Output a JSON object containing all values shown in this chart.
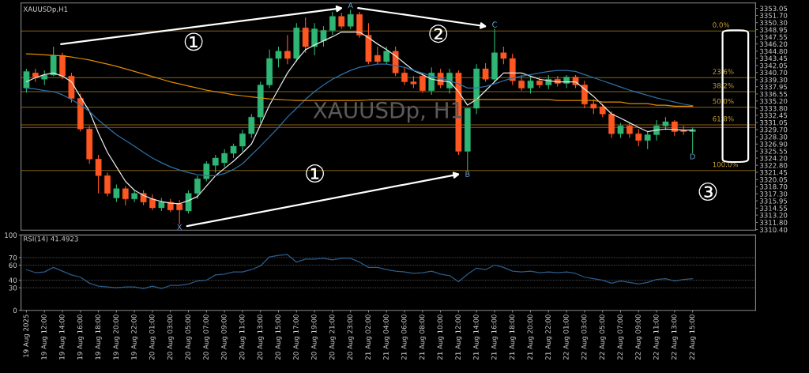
{
  "chart_data": [
    {
      "type": "candlestick",
      "title": "XAUUSDp,H1",
      "categories": [
        null,
        null,
        null,
        null,
        null,
        null,
        null,
        null,
        null,
        null,
        null,
        null,
        null,
        null,
        null,
        null,
        null,
        null,
        null,
        null,
        null,
        null,
        null,
        null,
        null,
        null,
        null,
        null,
        null,
        null,
        null,
        null,
        null,
        null,
        null,
        null,
        null,
        null,
        null,
        null,
        null,
        null,
        null,
        null,
        null,
        null,
        null,
        null,
        null,
        null,
        null,
        null,
        null,
        null,
        null,
        null,
        null,
        null,
        null,
        null,
        null,
        null,
        null,
        null,
        null,
        null,
        null,
        null,
        null,
        null,
        null,
        null,
        null,
        null,
        null
      ],
      "ohlc": [
        [
          3337.7,
          3341.4,
          3336.8,
          3340.9
        ],
        [
          3340.6,
          3341.4,
          3338.9,
          3339.8
        ],
        [
          3339.4,
          3341.1,
          3338.3,
          3340.2
        ],
        [
          3340.2,
          3345.7,
          3340.0,
          3344.0
        ],
        [
          3344.0,
          3344.5,
          3339.4,
          3340.0
        ],
        [
          3340.0,
          3340.6,
          3334.9,
          3335.7
        ],
        [
          3335.7,
          3336.6,
          3329.3,
          3329.8
        ],
        [
          3329.8,
          3330.4,
          3323.1,
          3324.0
        ],
        [
          3324.0,
          3324.8,
          3317.4,
          3320.8
        ],
        [
          3320.8,
          3321.4,
          3316.8,
          3317.4
        ],
        [
          3316.5,
          3319.1,
          3315.7,
          3318.3
        ],
        [
          3318.3,
          3318.8,
          3315.1,
          3316.3
        ],
        [
          3316.3,
          3318.0,
          3315.7,
          3317.4
        ],
        [
          3317.4,
          3318.0,
          3315.1,
          3315.7
        ],
        [
          3316.3,
          3317.2,
          3314.2,
          3314.6
        ],
        [
          3314.6,
          3316.5,
          3314.0,
          3315.7
        ],
        [
          3315.7,
          3316.3,
          3313.8,
          3314.2
        ],
        [
          3315.4,
          3316.1,
          3311.5,
          3314.2
        ],
        [
          3314.0,
          3318.0,
          3313.5,
          3317.4
        ],
        [
          3317.4,
          3320.8,
          3316.3,
          3320.2
        ],
        [
          3320.2,
          3323.6,
          3319.7,
          3323.1
        ],
        [
          3322.8,
          3324.8,
          3321.4,
          3324.2
        ],
        [
          3323.3,
          3325.9,
          3322.5,
          3325.1
        ],
        [
          3325.1,
          3327.0,
          3324.2,
          3326.5
        ],
        [
          3326.5,
          3329.6,
          3325.5,
          3328.9
        ],
        [
          3328.9,
          3332.7,
          3328.1,
          3332.1
        ],
        [
          3332.1,
          3338.9,
          3331.0,
          3338.3
        ],
        [
          3338.3,
          3345.1,
          3337.7,
          3343.4
        ],
        [
          3343.4,
          3345.7,
          3341.7,
          3344.8
        ],
        [
          3344.8,
          3347.9,
          3342.3,
          3343.4
        ],
        [
          3343.4,
          3350.2,
          3342.8,
          3349.3
        ],
        [
          3349.3,
          3351.3,
          3344.5,
          3345.7
        ],
        [
          3345.7,
          3350.2,
          3344.0,
          3349.1
        ],
        [
          3346.8,
          3349.6,
          3345.7,
          3348.8
        ],
        [
          3348.8,
          3352.4,
          3347.9,
          3351.5
        ],
        [
          3351.5,
          3352.2,
          3349.1,
          3349.6
        ],
        [
          3349.6,
          3352.8,
          3349.1,
          3351.9
        ],
        [
          3351.9,
          3352.4,
          3347.4,
          3347.9
        ],
        [
          3347.9,
          3350.2,
          3342.3,
          3342.8
        ],
        [
          3344.0,
          3345.7,
          3342.3,
          3342.8
        ],
        [
          3342.8,
          3345.7,
          3342.3,
          3344.8
        ],
        [
          3344.8,
          3345.7,
          3340.0,
          3340.6
        ],
        [
          3340.6,
          3341.7,
          3338.3,
          3338.9
        ],
        [
          3338.9,
          3340.0,
          3337.7,
          3338.5
        ],
        [
          3340.0,
          3340.6,
          3336.8,
          3337.2
        ],
        [
          3337.2,
          3341.7,
          3336.4,
          3340.6
        ],
        [
          3340.6,
          3341.4,
          3337.7,
          3338.3
        ],
        [
          3337.7,
          3341.4,
          3336.6,
          3340.6
        ],
        [
          3340.6,
          3341.1,
          3324.8,
          3325.5
        ],
        [
          3325.5,
          3333.8,
          3321.7,
          3333.8
        ],
        [
          3333.8,
          3342.3,
          3332.7,
          3341.4
        ],
        [
          3341.4,
          3342.5,
          3338.9,
          3339.4
        ],
        [
          3339.4,
          3349.1,
          3338.9,
          3344.5
        ],
        [
          3344.5,
          3345.7,
          3342.3,
          3343.4
        ],
        [
          3343.4,
          3344.3,
          3338.3,
          3339.1
        ],
        [
          3339.1,
          3340.2,
          3337.2,
          3337.7
        ],
        [
          3337.7,
          3340.0,
          3336.6,
          3339.1
        ],
        [
          3339.1,
          3339.8,
          3337.7,
          3338.3
        ],
        [
          3338.3,
          3340.2,
          3337.5,
          3339.4
        ],
        [
          3339.4,
          3340.0,
          3338.0,
          3338.6
        ],
        [
          3338.6,
          3340.2,
          3337.7,
          3339.8
        ],
        [
          3339.8,
          3340.2,
          3337.7,
          3338.3
        ],
        [
          3338.3,
          3339.1,
          3333.8,
          3334.6
        ],
        [
          3334.6,
          3335.5,
          3332.7,
          3333.8
        ],
        [
          3334.1,
          3334.6,
          3332.1,
          3332.7
        ],
        [
          3332.7,
          3333.2,
          3328.1,
          3328.9
        ],
        [
          3328.9,
          3331.0,
          3328.1,
          3330.4
        ],
        [
          3330.4,
          3331.0,
          3328.1,
          3328.9
        ],
        [
          3328.9,
          3329.8,
          3326.5,
          3327.6
        ],
        [
          3327.6,
          3329.3,
          3325.9,
          3328.7
        ],
        [
          3328.7,
          3331.5,
          3327.6,
          3330.4
        ],
        [
          3330.4,
          3332.1,
          3329.6,
          3331.2
        ],
        [
          3331.2,
          3331.5,
          3328.5,
          3329.3
        ],
        [
          3329.6,
          3330.4,
          3328.7,
          3329.3
        ],
        [
          3329.3,
          3330.1,
          3325.1,
          3329.7
        ]
      ],
      "colors": [
        "#2fb574",
        "#ff5722",
        "#2fb574",
        "#2fb574",
        "#ff5722",
        "#ff5722",
        "#ff5722",
        "#ff5722",
        "#ff5722",
        "#ff5722",
        "#2fb574",
        "#ff5722",
        "#2fb574",
        "#ff5722",
        "#ff5722",
        "#2fb574",
        "#ff5722",
        "#ff5722",
        "#2fb574",
        "#2fb574",
        "#2fb574",
        "#2fb574",
        "#2fb574",
        "#2fb574",
        "#2fb574",
        "#2fb574",
        "#2fb574",
        "#2fb574",
        "#2fb574",
        "#ff5722",
        "#2fb574",
        "#ff5722",
        "#2fb574",
        "#2fb574",
        "#2fb574",
        "#ff5722",
        "#2fb574",
        "#ff5722",
        "#ff5722",
        "#ff5722",
        "#2fb574",
        "#ff5722",
        "#ff5722",
        "#ff5722",
        "#ff5722",
        "#2fb574",
        "#ff5722",
        "#2fb574",
        "#ff5722",
        "#2fb574",
        "#2fb574",
        "#ff5722",
        "#2fb574",
        "#ff5722",
        "#ff5722",
        "#ff5722",
        "#2fb574",
        "#ff5722",
        "#2fb574",
        "#ff5722",
        "#2fb574",
        "#ff5722",
        "#ff5722",
        "#ff5722",
        "#ff5722",
        "#ff5722",
        "#2fb574",
        "#ff5722",
        "#ff5722",
        "#2fb574",
        "#2fb574",
        "#2fb574",
        "#ff5722",
        "#ff5722",
        "#2fb574"
      ],
      "series": [
        {
          "type": "line",
          "color": "#e8e8e8",
          "values": [
            3338.9,
            3339.7,
            3340.3,
            3340.6,
            3340.0,
            3338.9,
            3336.0,
            3333.2,
            3329.0,
            3325.3,
            3322.5,
            3319.7,
            3318.0,
            3317.0,
            3316.3,
            3315.8,
            3315.5,
            3315.4,
            3316.0,
            3316.8,
            3318.8,
            3320.8,
            3322.2,
            3323.6,
            3325.2,
            3326.9,
            3330.6,
            3334.4,
            3337.5,
            3340.6,
            3343.0,
            3345.1,
            3346.0,
            3346.8,
            3347.6,
            3348.5,
            3348.5,
            3348.5,
            3347.4,
            3346.2,
            3345.1,
            3343.9,
            3342.5,
            3341.1,
            3340.3,
            3339.4,
            3339.1,
            3338.9,
            3337.0,
            3334.4,
            3335.5,
            3337.2,
            3338.9,
            3340.6,
            3340.6,
            3340.6,
            3340.0,
            3339.4,
            3339.1,
            3338.9,
            3338.9,
            3338.9,
            3337.5,
            3336.1,
            3334.4,
            3332.7,
            3331.9,
            3331.0,
            3330.1,
            3329.3,
            3329.6,
            3329.8,
            3329.7,
            3329.6,
            3329.6
          ]
        },
        {
          "type": "line",
          "color": "#2f6fa8",
          "values": [
            3337.7,
            3337.5,
            3337.2,
            3337.0,
            3336.4,
            3335.5,
            3334.4,
            3333.2,
            3331.5,
            3330.1,
            3328.7,
            3327.6,
            3326.5,
            3325.3,
            3324.2,
            3323.3,
            3322.5,
            3321.9,
            3321.4,
            3321.0,
            3320.8,
            3320.8,
            3321.2,
            3322.0,
            3323.1,
            3324.8,
            3326.5,
            3328.3,
            3330.1,
            3332.1,
            3333.8,
            3335.5,
            3337.0,
            3338.3,
            3339.4,
            3340.3,
            3341.1,
            3341.7,
            3342.0,
            3342.3,
            3342.3,
            3342.0,
            3341.7,
            3341.1,
            3340.6,
            3340.0,
            3339.6,
            3339.1,
            3338.5,
            3337.7,
            3337.7,
            3338.0,
            3338.5,
            3339.1,
            3339.6,
            3340.0,
            3340.3,
            3340.6,
            3340.9,
            3341.1,
            3341.1,
            3340.9,
            3340.3,
            3339.7,
            3339.1,
            3338.5,
            3337.9,
            3337.3,
            3336.8,
            3336.3,
            3335.8,
            3335.4,
            3335.0,
            3334.6,
            3334.3
          ]
        },
        {
          "type": "line",
          "color": "#e08a00",
          "values": [
            3344.3,
            3344.2,
            3344.1,
            3344.0,
            3343.9,
            3343.7,
            3343.4,
            3343.1,
            3342.7,
            3342.3,
            3341.9,
            3341.4,
            3340.9,
            3340.4,
            3339.9,
            3339.4,
            3338.9,
            3338.5,
            3338.1,
            3337.7,
            3337.3,
            3337.0,
            3336.7,
            3336.4,
            3336.2,
            3336.0,
            3335.8,
            3335.6,
            3335.5,
            3335.4,
            3335.3,
            3335.3,
            3335.3,
            3335.3,
            3335.3,
            3335.3,
            3335.3,
            3335.3,
            3335.4,
            3335.4,
            3335.4,
            3335.4,
            3335.4,
            3335.4,
            3335.4,
            3335.4,
            3335.4,
            3335.4,
            3335.5,
            3335.5,
            3335.5,
            3335.5,
            3335.5,
            3335.5,
            3335.5,
            3335.5,
            3335.5,
            3335.5,
            3335.5,
            3335.3,
            3335.3,
            3335.3,
            3335.3,
            3335.3,
            3335.0,
            3335.0,
            3335.0,
            3334.7,
            3334.7,
            3334.7,
            3334.4,
            3334.4,
            3334.2,
            3334.2,
            3334.2
          ]
        }
      ],
      "ylim": [
        3310.3,
        3354.1
      ],
      "yticks": [
        {
          "value": 3310.4,
          "label": "3310.40"
        },
        {
          "value": 3311.8,
          "label": "3311.80"
        },
        {
          "value": 3313.2,
          "label": "3313.20"
        },
        {
          "value": 3314.55,
          "label": "3314.55"
        },
        {
          "value": 3315.95,
          "label": "3315.95"
        },
        {
          "value": 3317.3,
          "label": "3317.30"
        },
        {
          "value": 3318.7,
          "label": "3318.70"
        },
        {
          "value": 3320.05,
          "label": "3320.05"
        },
        {
          "value": 3321.45,
          "label": "3321.45"
        },
        {
          "value": 3322.8,
          "label": "3322.80"
        },
        {
          "value": 3324.2,
          "label": "3324.20"
        },
        {
          "value": 3325.55,
          "label": "3325.55"
        },
        {
          "value": 3326.9,
          "label": "3326.90"
        },
        {
          "value": 3328.3,
          "label": "3328.30"
        },
        {
          "value": 3329.7,
          "label": "3329.70"
        },
        {
          "value": 3331.05,
          "label": "3331.05"
        },
        {
          "value": 3332.45,
          "label": "3332.45"
        },
        {
          "value": 3333.8,
          "label": "3333.80"
        },
        {
          "value": 3335.2,
          "label": "3335.20"
        },
        {
          "value": 3336.55,
          "label": "3336.55"
        },
        {
          "value": 3337.95,
          "label": "3337.95"
        },
        {
          "value": 3339.3,
          "label": "3339.30"
        },
        {
          "value": 3340.7,
          "label": "3340.70"
        },
        {
          "value": 3342.05,
          "label": "3342.05"
        },
        {
          "value": 3343.45,
          "label": "3343.45"
        },
        {
          "value": 3344.8,
          "label": "3344.80"
        },
        {
          "value": 3346.2,
          "label": "3346.20"
        },
        {
          "value": 3347.55,
          "label": "3347.55"
        },
        {
          "value": 3348.95,
          "label": "3348.95"
        },
        {
          "value": 3350.3,
          "label": "3350.30"
        },
        {
          "value": 3351.7,
          "label": "3351.70"
        },
        {
          "value": 3353.05,
          "label": "3353.05"
        }
      ],
      "ref_lines": [
        {
          "axis": "y",
          "value": 3348.7,
          "color": "#a07818"
        },
        {
          "axis": "y",
          "value": 3339.7,
          "color": "#a07818"
        },
        {
          "axis": "y",
          "value": 3337.0,
          "color": "#a07818"
        },
        {
          "axis": "y",
          "value": 3334.0,
          "color": "#a07818"
        },
        {
          "axis": "y",
          "value": 3330.6,
          "color": "#a07818"
        },
        {
          "axis": "y",
          "value": 3321.8,
          "color": "#a07818"
        },
        {
          "axis": "y",
          "value": 3330.1,
          "color": "#ff3b1f"
        }
      ],
      "annotations": [
        "XAUUSDp, H1",
        "①",
        "①",
        "②",
        "③",
        "X",
        "A",
        "B",
        "C",
        "D",
        {
          "text": "0.0%",
          "y": 3348.7
        },
        {
          "text": "23.6%",
          "y": 3339.7
        },
        {
          "text": "38.2%",
          "y": 3337.0
        },
        {
          "text": "50.0%",
          "y": 3334.0
        },
        {
          "text": "61.8%",
          "y": 3330.6
        },
        {
          "text": "100.0%",
          "y": 3321.8
        }
      ],
      "tick_labels": "y",
      "grid": false,
      "legend": false
    },
    {
      "type": "line",
      "title": "RSI(14) 41.4923",
      "categories": [
        "19 Aug 2025",
        null,
        "19 Aug 12:00",
        null,
        "19 Aug 14:00",
        null,
        "19 Aug 16:00",
        null,
        "19 Aug 18:00",
        null,
        "19 Aug 20:00",
        null,
        "19 Aug 22:00",
        null,
        "20 Aug 01:00",
        null,
        "20 Aug 03:00",
        null,
        "20 Aug 05:00",
        null,
        "20 Aug 07:00",
        null,
        "20 Aug 09:00",
        null,
        "20 Aug 11:00",
        null,
        "20 Aug 13:00",
        null,
        "20 Aug 15:00",
        null,
        "20 Aug 17:00",
        null,
        "20 Aug 19:00",
        null,
        "20 Aug 21:00",
        null,
        "20 Aug 23:00",
        null,
        "21 Aug 02:00",
        null,
        "21 Aug 04:00",
        null,
        "21 Aug 06:00",
        null,
        "21 Aug 08:00",
        null,
        "21 Aug 10:00",
        null,
        "21 Aug 12:00",
        null,
        "21 Aug 14:00",
        null,
        "21 Aug 16:00",
        null,
        "21 Aug 18:00",
        null,
        "21 Aug 20:00",
        null,
        "21 Aug 22:00",
        null,
        "22 Aug 01:00",
        null,
        "22 Aug 03:00",
        null,
        "22 Aug 05:00",
        null,
        "22 Aug 07:00",
        null,
        "22 Aug 09:00",
        null,
        "22 Aug 11:00",
        null,
        "22 Aug 13:00",
        null,
        "22 Aug 15:00"
      ],
      "series": [
        {
          "color": "#2a5c8a",
          "values": [
            54,
            50,
            51,
            57,
            52,
            47,
            44,
            36,
            32,
            31,
            30,
            31,
            31,
            29,
            32,
            29,
            33,
            33,
            35,
            39,
            40,
            47,
            48,
            51,
            51,
            54,
            59,
            71,
            73,
            74,
            64,
            68,
            68,
            69,
            67,
            69,
            69,
            64,
            57,
            57,
            54,
            52,
            51,
            49,
            50,
            52,
            48,
            46,
            38,
            48,
            56,
            54,
            60,
            57,
            52,
            51,
            52,
            50,
            51,
            50,
            51,
            49,
            44,
            42,
            40,
            36,
            39,
            37,
            35,
            37,
            41,
            42,
            39,
            41,
            42
          ]
        }
      ],
      "ylim": [
        0,
        100
      ],
      "yticks": [
        0,
        30,
        40,
        60,
        70,
        100
      ],
      "ref_lines": [
        {
          "axis": "y",
          "value": 70,
          "label": null,
          "color": "#777777",
          "line_style": "dotted"
        },
        {
          "axis": "y",
          "value": 60,
          "label": null,
          "color": "#777777",
          "line_style": "dotted"
        },
        {
          "axis": "y",
          "value": 40,
          "label": null,
          "color": "#777777",
          "line_style": "dotted"
        },
        {
          "axis": "y",
          "value": 30,
          "label": null,
          "color": "#777777",
          "line_style": "dotted"
        }
      ],
      "grid": false,
      "legend": false
    }
  ]
}
